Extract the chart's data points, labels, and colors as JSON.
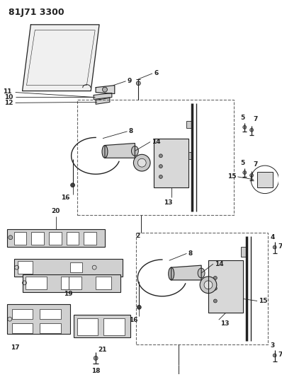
{
  "title": "81J71 3300",
  "bg_color": "#ffffff",
  "line_color": "#222222",
  "label_fontsize": 6.5,
  "fig_width": 3.98,
  "fig_height": 5.33,
  "dpi": 100
}
